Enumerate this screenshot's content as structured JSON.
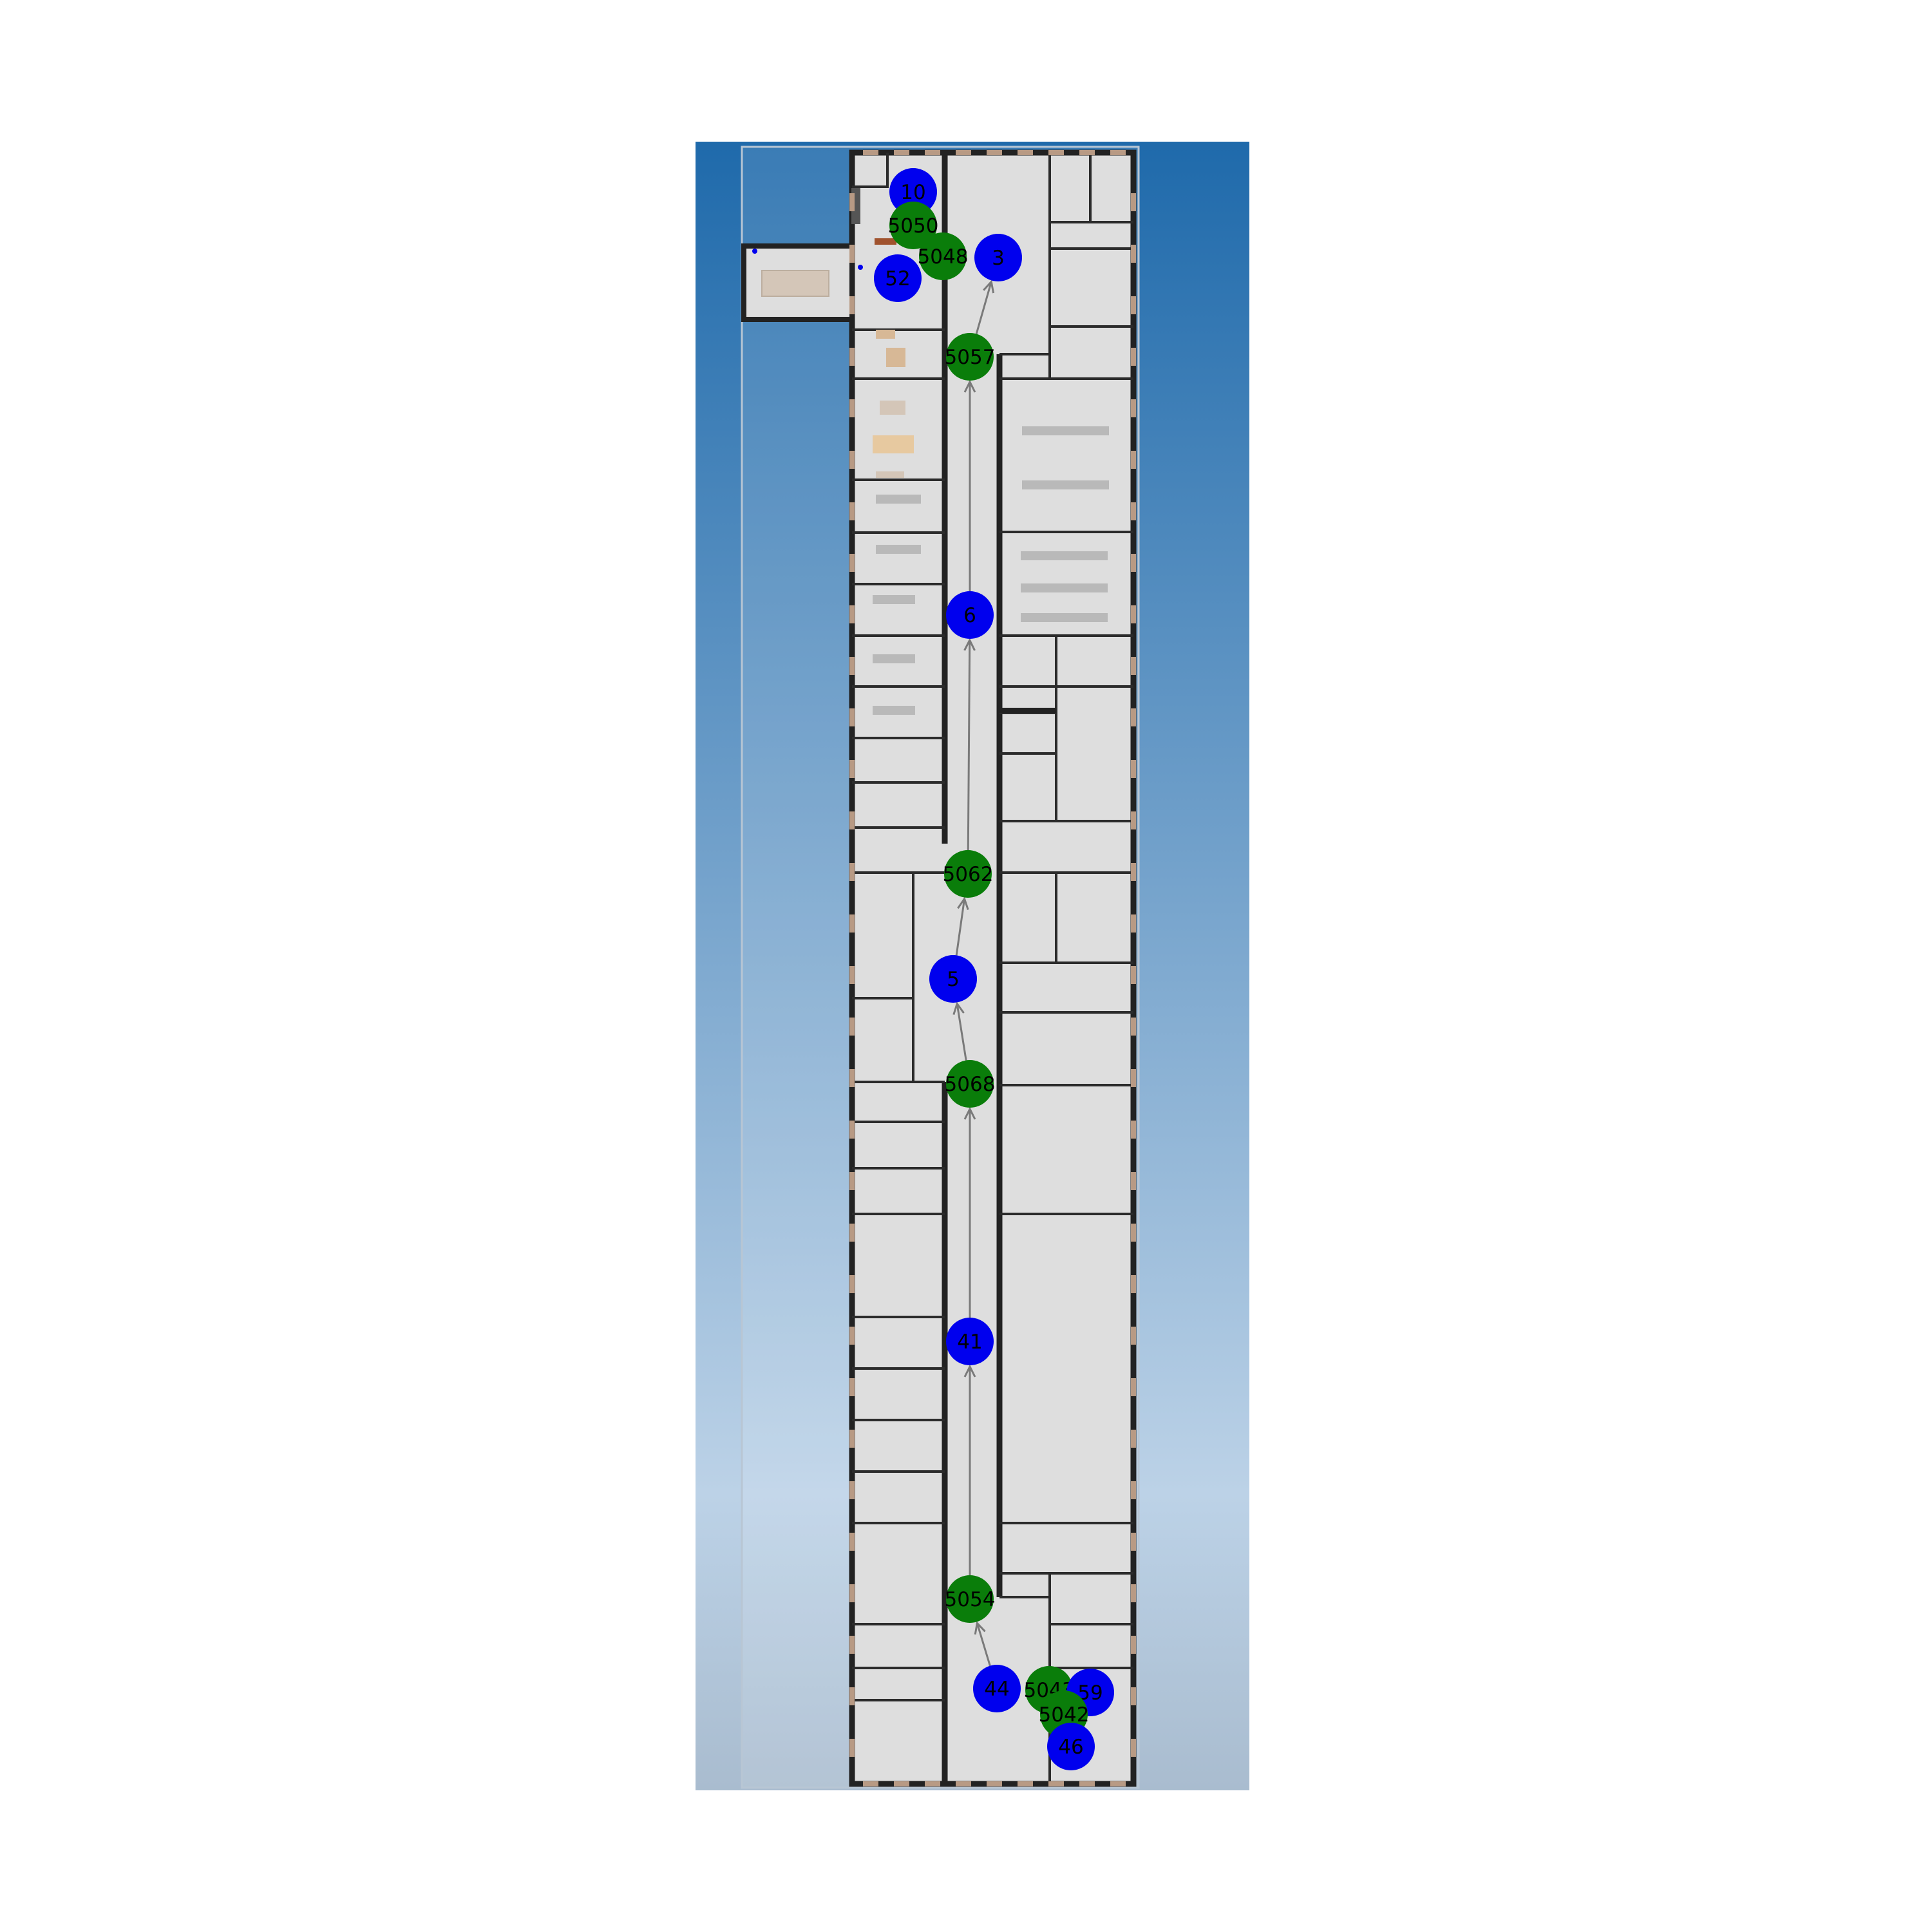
{
  "colors": {
    "waypoint": "#0000ee",
    "junction": "#0a7d0a",
    "edge": "#7a7a7a",
    "floor": "#dedede",
    "wall": "#222222",
    "window": "#b89a84",
    "sky_top": "#1f6aab",
    "sky_bottom": "#bcd2e7"
  },
  "map": {
    "nodes": [
      {
        "id": "10",
        "kind": "waypoint"
      },
      {
        "id": "5050",
        "kind": "junction"
      },
      {
        "id": "5048",
        "kind": "junction"
      },
      {
        "id": "3",
        "kind": "waypoint"
      },
      {
        "id": "52",
        "kind": "waypoint"
      },
      {
        "id": "5057",
        "kind": "junction"
      },
      {
        "id": "6",
        "kind": "waypoint"
      },
      {
        "id": "5062",
        "kind": "junction"
      },
      {
        "id": "5",
        "kind": "waypoint"
      },
      {
        "id": "5068",
        "kind": "junction"
      },
      {
        "id": "41",
        "kind": "waypoint"
      },
      {
        "id": "5054",
        "kind": "junction"
      },
      {
        "id": "44",
        "kind": "waypoint"
      },
      {
        "id": "5043",
        "kind": "junction"
      },
      {
        "id": "59",
        "kind": "waypoint"
      },
      {
        "id": "5042",
        "kind": "junction"
      },
      {
        "id": "46",
        "kind": "waypoint"
      }
    ],
    "edges": [
      {
        "from": "44",
        "to": "5054"
      },
      {
        "from": "5054",
        "to": "41"
      },
      {
        "from": "41",
        "to": "5068"
      },
      {
        "from": "5068",
        "to": "5"
      },
      {
        "from": "5",
        "to": "5062"
      },
      {
        "from": "5062",
        "to": "6"
      },
      {
        "from": "6",
        "to": "5057"
      },
      {
        "from": "5057",
        "to": "3"
      }
    ]
  }
}
